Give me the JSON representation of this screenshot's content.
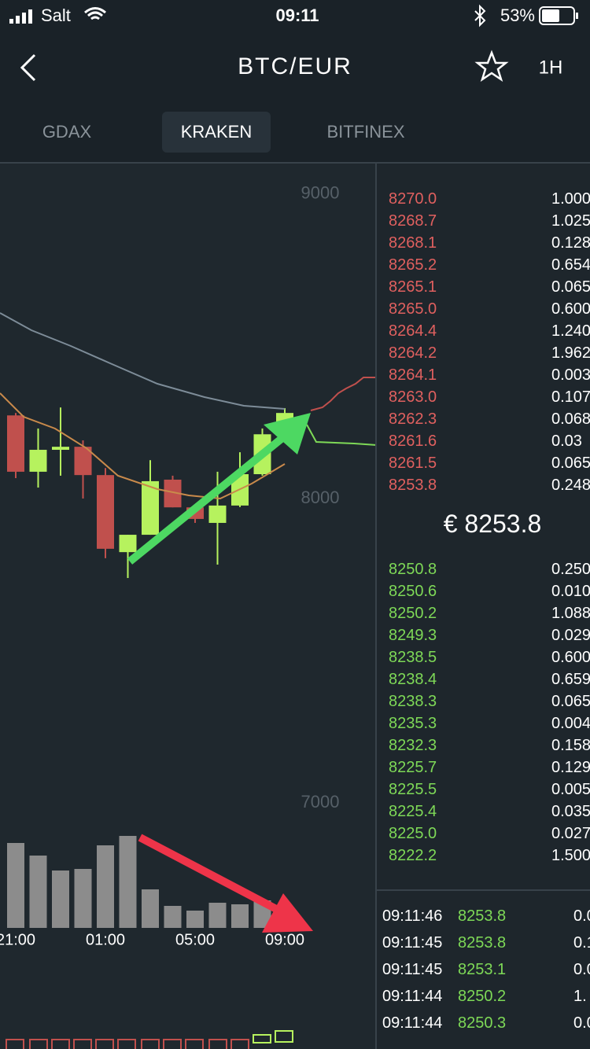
{
  "status": {
    "carrier": "Salt",
    "time": "09:11",
    "battery": "53%"
  },
  "header": {
    "title": "BTC/EUR",
    "interval": "1H"
  },
  "tabs": [
    "GDAX",
    "KRAKEN",
    "BITFINEX"
  ],
  "chart_data": {
    "type": "candlestick",
    "categories": [
      "21:00",
      null,
      null,
      null,
      "01:00",
      null,
      null,
      null,
      "05:00",
      null,
      null,
      null,
      "09:00"
    ],
    "open": [
      8273,
      8088,
      8160,
      8170,
      8077,
      7824,
      7881,
      8062,
      7971,
      7920,
      7977,
      8080,
      8211
    ],
    "high": [
      8281,
      8230,
      8299,
      8191,
      8100,
      7881,
      8126,
      8075,
      7971,
      8088,
      8152,
      8230,
      8297
    ],
    "low": [
      8067,
      8036,
      8075,
      8000,
      7804,
      7739,
      7881,
      7971,
      7920,
      7783,
      7972,
      8075,
      8211
    ],
    "close": [
      8088,
      8160,
      8170,
      8077,
      7835,
      7881,
      8057,
      7971,
      7933,
      7977,
      8080,
      8211,
      8281
    ],
    "up_color": "#b6f25e",
    "down_color": "#c0504d",
    "volume": [
      108,
      92,
      73,
      75,
      105,
      117,
      49,
      28,
      22,
      32,
      30,
      35,
      0
    ],
    "volume_color": "#8c8c8c",
    "vlim": [
      0,
      200
    ],
    "ylim": [
      6590,
      9100
    ],
    "yticks": [
      7000,
      8000,
      9000
    ]
  },
  "order_book": {
    "asks": [
      {
        "price": "8270.0",
        "amount": "1.000"
      },
      {
        "price": "8268.7",
        "amount": "1.025"
      },
      {
        "price": "8268.1",
        "amount": "0.128"
      },
      {
        "price": "8265.2",
        "amount": "0.654"
      },
      {
        "price": "8265.1",
        "amount": "0.065"
      },
      {
        "price": "8265.0",
        "amount": "0.600"
      },
      {
        "price": "8264.4",
        "amount": "1.240"
      },
      {
        "price": "8264.2",
        "amount": "1.962"
      },
      {
        "price": "8264.1",
        "amount": "0.003"
      },
      {
        "price": "8263.0",
        "amount": "0.107"
      },
      {
        "price": "8262.3",
        "amount": "0.068"
      },
      {
        "price": "8261.6",
        "amount": "0.03"
      },
      {
        "price": "8261.5",
        "amount": "0.065"
      },
      {
        "price": "8253.8",
        "amount": "0.248"
      }
    ],
    "mid": "€ 8253.8",
    "bids": [
      {
        "price": "8250.8",
        "amount": "0.250"
      },
      {
        "price": "8250.6",
        "amount": "0.010"
      },
      {
        "price": "8250.2",
        "amount": "1.088"
      },
      {
        "price": "8249.3",
        "amount": "0.029"
      },
      {
        "price": "8238.5",
        "amount": "0.600"
      },
      {
        "price": "8238.4",
        "amount": "0.659"
      },
      {
        "price": "8238.3",
        "amount": "0.065"
      },
      {
        "price": "8235.3",
        "amount": "0.004"
      },
      {
        "price": "8232.3",
        "amount": "0.158"
      },
      {
        "price": "8225.7",
        "amount": "0.129"
      },
      {
        "price": "8225.5",
        "amount": "0.005"
      },
      {
        "price": "8225.4",
        "amount": "0.035"
      },
      {
        "price": "8225.0",
        "amount": "0.027"
      },
      {
        "price": "8222.2",
        "amount": "1.500"
      }
    ]
  },
  "trades": [
    {
      "time": "09:11:46",
      "price": "8253.8",
      "amount": "0.0"
    },
    {
      "time": "09:11:45",
      "price": "8253.8",
      "amount": "0.1"
    },
    {
      "time": "09:11:45",
      "price": "8253.1",
      "amount": "0.0"
    },
    {
      "time": "09:11:44",
      "price": "8250.2",
      "amount": "1."
    },
    {
      "time": "09:11:44",
      "price": "8250.3",
      "amount": "0.0"
    }
  ]
}
